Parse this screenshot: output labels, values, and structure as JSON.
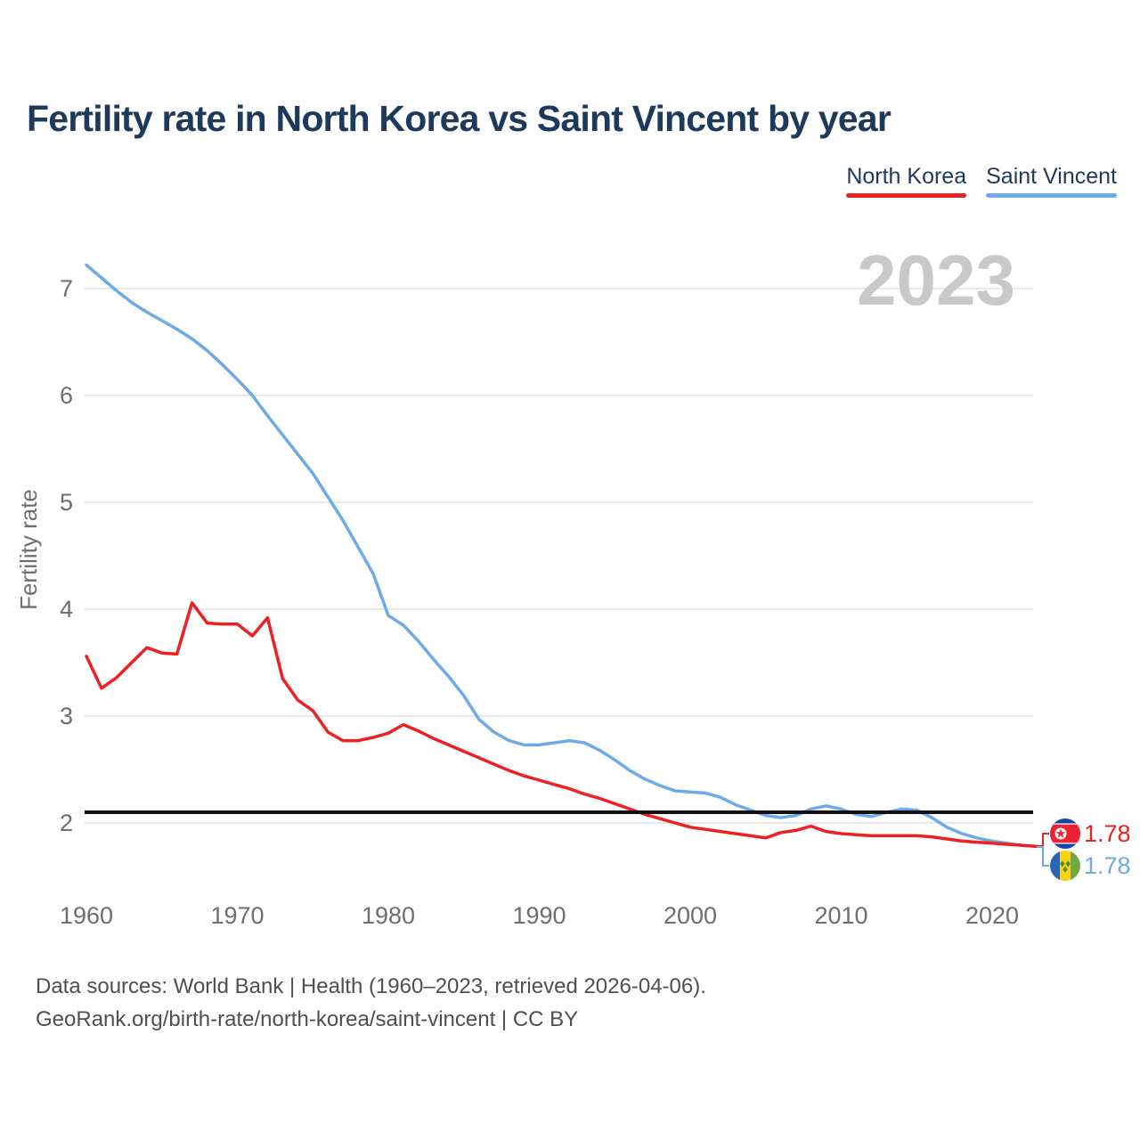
{
  "header": {
    "title": "Fertility rate in North Korea vs Saint Vincent by year"
  },
  "legend": [
    {
      "label": "North Korea",
      "color": "#ee2024"
    },
    {
      "label": "Saint Vincent",
      "color": "#6cabe7"
    }
  ],
  "footer": {
    "line1": "Data sources: World Bank | Health (1960–2023, retrieved 2026-04-06).",
    "line2": "GeoRank.org/birth-rate/north-korea/saint-vincent | CC BY"
  },
  "chart_data": {
    "type": "line",
    "title": "Fertility rate in North Korea vs Saint Vincent by year",
    "ylabel": "Fertility rate",
    "watermark": "2023",
    "x_start": 1960,
    "x_end": 2023,
    "xticks": [
      1960,
      1970,
      1980,
      1990,
      2000,
      2010,
      2020
    ],
    "yticks": [
      2,
      3,
      4,
      5,
      6,
      7
    ],
    "ylim": [
      1.7,
      7.4
    ],
    "reference_line": 2.1,
    "grid": "horizontal",
    "legend_position": "top-right",
    "series": [
      {
        "name": "North Korea",
        "color": "#ee2024",
        "end_label": "1.78",
        "flag": "north-korea",
        "values": [
          3.56,
          3.26,
          3.36,
          3.5,
          3.64,
          3.59,
          3.58,
          4.06,
          3.87,
          3.86,
          3.86,
          3.75,
          3.92,
          3.35,
          3.15,
          3.05,
          2.85,
          2.77,
          2.77,
          2.8,
          2.84,
          2.92,
          2.86,
          2.79,
          2.73,
          2.67,
          2.61,
          2.55,
          2.49,
          2.44,
          2.4,
          2.36,
          2.32,
          2.27,
          2.23,
          2.18,
          2.13,
          2.08,
          2.04,
          2.0,
          1.96,
          1.94,
          1.92,
          1.9,
          1.88,
          1.86,
          1.91,
          1.93,
          1.97,
          1.92,
          1.9,
          1.89,
          1.88,
          1.88,
          1.88,
          1.88,
          1.87,
          1.85,
          1.83,
          1.82,
          1.81,
          1.8,
          1.79,
          1.78
        ]
      },
      {
        "name": "Saint Vincent",
        "color": "#6cabe7",
        "end_label": "1.78",
        "flag": "saint-vincent",
        "values": [
          7.22,
          7.1,
          6.98,
          6.87,
          6.78,
          6.7,
          6.62,
          6.53,
          6.42,
          6.29,
          6.15,
          6.0,
          5.81,
          5.63,
          5.45,
          5.27,
          5.05,
          4.83,
          4.58,
          4.33,
          3.94,
          3.85,
          3.7,
          3.53,
          3.37,
          3.19,
          2.97,
          2.85,
          2.77,
          2.73,
          2.73,
          2.75,
          2.77,
          2.75,
          2.68,
          2.59,
          2.49,
          2.41,
          2.35,
          2.3,
          2.29,
          2.28,
          2.24,
          2.17,
          2.12,
          2.07,
          2.05,
          2.07,
          2.13,
          2.16,
          2.13,
          2.08,
          2.06,
          2.1,
          2.13,
          2.12,
          2.05,
          1.96,
          1.9,
          1.86,
          1.83,
          1.81,
          1.79,
          1.78
        ]
      }
    ]
  }
}
